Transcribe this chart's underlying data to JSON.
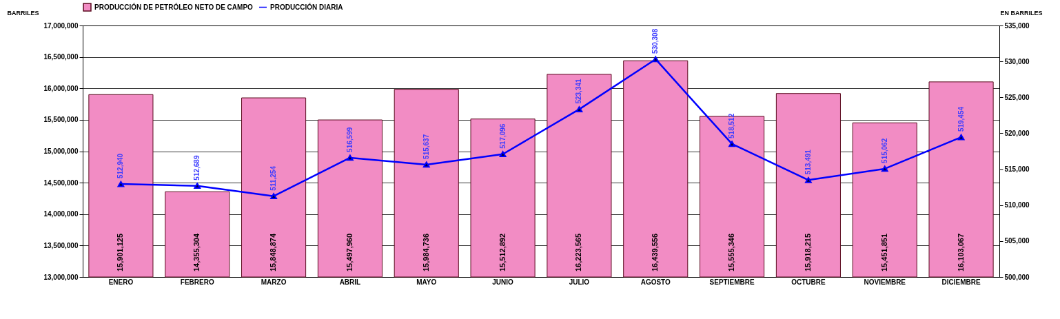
{
  "chart_data": {
    "type": "bar",
    "categories": [
      "ENERO",
      "FEBRERO",
      "MARZO",
      "ABRIL",
      "MAYO",
      "JUNIO",
      "JULIO",
      "AGOSTO",
      "SEPTIEMBRE",
      "OCTUBRE",
      "NOVIEMBRE",
      "DICIEMBRE"
    ],
    "series": [
      {
        "name": "PRODUCCIÓN DE PETRÓLEO NETO DE CAMPO",
        "color": "#f28cc4",
        "values": [
          15901125,
          14355304,
          15848874,
          15497960,
          15984736,
          15512892,
          16223565,
          16439556,
          15555346,
          15918215,
          15451851,
          16103067
        ],
        "value_labels": [
          "15,901,125",
          "14,355,304",
          "15,848,874",
          "15,497,960",
          "15,984,736",
          "15,512,892",
          "16,223,565",
          "16,439,556",
          "15,555,346",
          "15,918,215",
          "15,451,851",
          "16,103,067"
        ]
      },
      {
        "name": "PRODUCCIÓN DIARIA",
        "type": "line",
        "axis": "y2",
        "color": "#0000ff",
        "values": [
          512940,
          512689,
          511254,
          516599,
          515637,
          517096,
          523341,
          530308,
          518512,
          513491,
          515062,
          519454
        ],
        "value_labels": [
          "512,940",
          "512,689",
          "511,254",
          "516,599",
          "515,637",
          "517,096",
          "523,341",
          "530,308",
          "518,512",
          "513,491",
          "515,062",
          "519,454"
        ]
      }
    ],
    "ylabel": "BARRILES",
    "y2label": "EN BARRILES",
    "ylim": [
      13000000,
      17000000
    ],
    "yticks": [
      {
        "value": 13000000,
        "label": "13,000,000"
      },
      {
        "value": 13500000,
        "label": "13,500,000"
      },
      {
        "value": 14000000,
        "label": "14,000,000"
      },
      {
        "value": 14500000,
        "label": "14,500,000"
      },
      {
        "value": 15000000,
        "label": "15,000,000"
      },
      {
        "value": 15500000,
        "label": "15,500,000"
      },
      {
        "value": 16000000,
        "label": "16,000,000"
      },
      {
        "value": 16500000,
        "label": "16,500,000"
      },
      {
        "value": 17000000,
        "label": "17,000,000"
      }
    ],
    "y2lim": [
      500000,
      535000
    ],
    "y2ticks": [
      {
        "value": 500000,
        "label": "500,000"
      },
      {
        "value": 505000,
        "label": "505,000"
      },
      {
        "value": 510000,
        "label": "510,000"
      },
      {
        "value": 515000,
        "label": "515,000"
      },
      {
        "value": 520000,
        "label": "520,000"
      },
      {
        "value": 525000,
        "label": "525,000"
      },
      {
        "value": 530000,
        "label": "530,000"
      },
      {
        "value": 535000,
        "label": "535,000"
      }
    ],
    "grid": "y",
    "legend": "top",
    "marker": "triangle"
  }
}
